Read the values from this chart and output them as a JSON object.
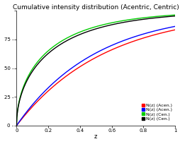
{
  "title": "Cumulative intensity distribution (Acentric, Centric)",
  "xlabel": "z",
  "xlim": [
    0,
    1
  ],
  "ylim": [
    0,
    1
  ],
  "xticks": [
    0.0,
    0.2,
    0.4,
    0.6,
    0.8,
    1.0
  ],
  "yticks": [
    0.0,
    0.25,
    0.5,
    0.75,
    1.0
  ],
  "ytick_labels": [
    "0 -",
    "25 -",
    "50 -",
    "75 -",
    ""
  ],
  "line_colors": [
    "#ff0000",
    "#0000ff",
    "#00cc00",
    "#000000"
  ],
  "legend_labels": [
    "N(z) (Acentric)",
    "N(z) (Acentric)",
    "N(z) (Centric)",
    "N(z) (Centric)"
  ],
  "background_color": "#ffffff",
  "title_fontsize": 6.5,
  "axis_fontsize": 6,
  "tick_fontsize": 5,
  "legend_fontsize": 4.5
}
